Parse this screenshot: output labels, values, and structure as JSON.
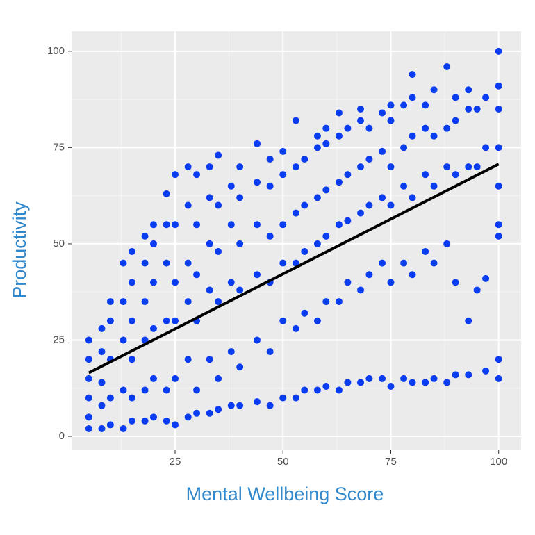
{
  "chart_data": {
    "type": "scatter",
    "xlabel": "Mental Wellbeing Score",
    "ylabel": "Productivity",
    "xlim": [
      1,
      105.2
    ],
    "ylim": [
      -3.6,
      105.2
    ],
    "xticks": [
      25,
      50,
      75,
      100
    ],
    "yticks": [
      0,
      25,
      50,
      75,
      100
    ],
    "grid": true,
    "series": [
      {
        "color": "#0a3cf0",
        "x": [
          5,
          5,
          5,
          5,
          5,
          5,
          8,
          8,
          8,
          8,
          8,
          10,
          10,
          10,
          10,
          10,
          13,
          13,
          13,
          13,
          13,
          15,
          15,
          15,
          15,
          15,
          15,
          18,
          18,
          18,
          18,
          18,
          18,
          20,
          20,
          20,
          20,
          20,
          20,
          23,
          23,
          23,
          23,
          23,
          23,
          25,
          25,
          25,
          25,
          25,
          25,
          28,
          28,
          28,
          28,
          28,
          28,
          30,
          30,
          30,
          30,
          30,
          30,
          33,
          33,
          33,
          33,
          33,
          33,
          35,
          35,
          35,
          35,
          35,
          35,
          38,
          38,
          38,
          38,
          38,
          40,
          40,
          40,
          40,
          40,
          40,
          44,
          44,
          44,
          44,
          44,
          44,
          47,
          47,
          47,
          47,
          47,
          47,
          50,
          50,
          50,
          50,
          50,
          50,
          53,
          53,
          53,
          53,
          53,
          53,
          55,
          55,
          55,
          55,
          55,
          58,
          58,
          58,
          58,
          58,
          58,
          60,
          60,
          60,
          60,
          60,
          60,
          63,
          63,
          63,
          63,
          63,
          63,
          65,
          65,
          65,
          65,
          65,
          68,
          68,
          68,
          68,
          68,
          68,
          70,
          70,
          70,
          70,
          70,
          73,
          73,
          73,
          73,
          73,
          75,
          75,
          75,
          75,
          75,
          75,
          78,
          78,
          78,
          78,
          78,
          80,
          80,
          80,
          80,
          80,
          80,
          83,
          83,
          83,
          83,
          83,
          85,
          85,
          85,
          85,
          85,
          88,
          88,
          88,
          88,
          88,
          90,
          90,
          90,
          90,
          90,
          93,
          93,
          93,
          93,
          93,
          95,
          95,
          95,
          97,
          97,
          97,
          97,
          100,
          100,
          100,
          100,
          100,
          100,
          100,
          100,
          100
        ],
        "values": [
          2,
          5,
          10,
          15,
          20,
          25,
          2,
          8,
          14,
          22,
          28,
          3,
          10,
          20,
          30,
          35,
          2,
          12,
          25,
          35,
          45,
          4,
          10,
          20,
          30,
          40,
          48,
          4,
          12,
          25,
          35,
          45,
          52,
          5,
          15,
          28,
          40,
          50,
          55,
          4,
          12,
          30,
          45,
          55,
          63,
          3,
          15,
          30,
          40,
          55,
          68,
          5,
          20,
          35,
          45,
          60,
          70,
          6,
          12,
          30,
          42,
          55,
          68,
          6,
          20,
          38,
          50,
          62,
          70,
          7,
          15,
          35,
          48,
          60,
          73,
          8,
          22,
          40,
          55,
          65,
          8,
          18,
          38,
          50,
          62,
          70,
          9,
          25,
          42,
          55,
          66,
          76,
          8,
          22,
          40,
          52,
          65,
          72,
          10,
          30,
          45,
          55,
          68,
          74,
          10,
          28,
          45,
          58,
          70,
          82,
          12,
          32,
          48,
          60,
          72,
          12,
          30,
          50,
          62,
          75,
          78,
          13,
          35,
          52,
          64,
          76,
          80,
          12,
          35,
          55,
          66,
          78,
          84,
          14,
          40,
          56,
          68,
          80,
          14,
          38,
          58,
          70,
          82,
          85,
          15,
          42,
          60,
          72,
          80,
          15,
          45,
          62,
          74,
          84,
          13,
          40,
          60,
          70,
          82,
          86,
          15,
          45,
          65,
          75,
          86,
          14,
          42,
          62,
          78,
          88,
          94,
          14,
          48,
          68,
          80,
          86,
          15,
          45,
          65,
          78,
          90,
          14,
          50,
          70,
          80,
          96,
          16,
          40,
          68,
          82,
          88,
          16,
          30,
          70,
          85,
          90,
          38,
          70,
          85,
          17,
          41,
          75,
          88,
          15,
          20,
          52,
          55,
          65,
          75,
          85,
          91,
          100
        ]
      }
    ],
    "fit": {
      "color": "#000000",
      "x": [
        5,
        100
      ],
      "values": [
        16.5,
        70.7
      ]
    }
  }
}
